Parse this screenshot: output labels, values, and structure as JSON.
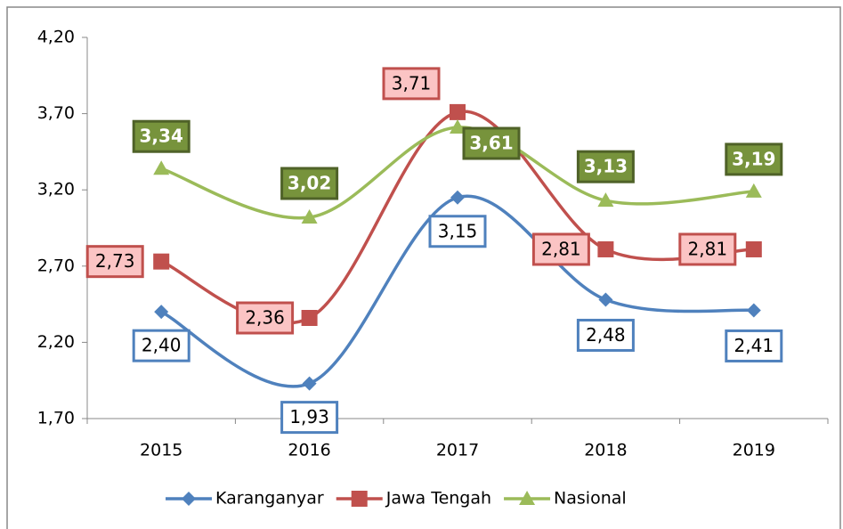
{
  "chart_data": {
    "type": "line",
    "categories": [
      "2015",
      "2016",
      "2017",
      "2018",
      "2019"
    ],
    "series": [
      {
        "name": "Karanganyar",
        "color": "#4f81bd",
        "values": [
          2.4,
          1.93,
          3.15,
          2.48,
          2.41
        ],
        "value_labels": [
          "2,40",
          "1,93",
          "3,15",
          "2,48",
          "2,41"
        ]
      },
      {
        "name": "Jawa Tengah",
        "color": "#c0504d",
        "values": [
          2.73,
          2.36,
          3.71,
          2.81,
          2.81
        ],
        "value_labels": [
          "2,73",
          "2,36",
          "3,71",
          "2,81",
          "2,81"
        ]
      },
      {
        "name": "Nasional",
        "color": "#9bbb59",
        "values": [
          3.34,
          3.02,
          3.61,
          3.13,
          3.19
        ],
        "value_labels": [
          "3,34",
          "3,02",
          "3,61",
          "3,13",
          "3,19"
        ]
      }
    ],
    "ylim": [
      1.7,
      4.2
    ],
    "yticks": [
      {
        "value": 1.7,
        "label": "1,70"
      },
      {
        "value": 2.2,
        "label": "2,20"
      },
      {
        "value": 2.7,
        "label": "2,70"
      },
      {
        "value": 3.2,
        "label": "3,20"
      },
      {
        "value": 3.7,
        "label": "3,70"
      },
      {
        "value": 4.2,
        "label": "4,20"
      }
    ],
    "smooth": true,
    "grid": false,
    "legend": "bottom"
  }
}
